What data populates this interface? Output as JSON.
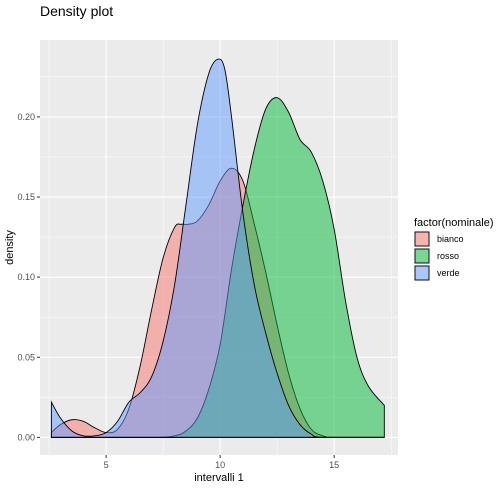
{
  "chart_data": {
    "type": "area",
    "title": "Density plot",
    "xlabel": "intervalli 1",
    "ylabel": "density",
    "xlim": [
      2.1,
      17.8
    ],
    "ylim": [
      -0.011,
      0.248
    ],
    "xticks": [
      5,
      10,
      15
    ],
    "yticks": [
      0.0,
      0.05,
      0.1,
      0.15,
      0.2
    ],
    "ytick_labels": [
      "0.00",
      "0.05",
      "0.10",
      "0.15",
      "0.20"
    ],
    "grid": true,
    "legend_title": "factor(nominale)",
    "legend_position": "right",
    "series": [
      {
        "name": "bianco",
        "color": "#F8766D",
        "points": [
          [
            2.6,
            0.003
          ],
          [
            3.0,
            0.008
          ],
          [
            3.5,
            0.011
          ],
          [
            4.0,
            0.01
          ],
          [
            4.5,
            0.006
          ],
          [
            5.0,
            0.003
          ],
          [
            5.5,
            0.005
          ],
          [
            6.0,
            0.018
          ],
          [
            6.5,
            0.045
          ],
          [
            7.0,
            0.08
          ],
          [
            7.5,
            0.112
          ],
          [
            8.0,
            0.131
          ],
          [
            8.3,
            0.133
          ],
          [
            8.6,
            0.133
          ],
          [
            9.0,
            0.135
          ],
          [
            9.5,
            0.145
          ],
          [
            10.0,
            0.16
          ],
          [
            10.5,
            0.168
          ],
          [
            11.0,
            0.16
          ],
          [
            11.5,
            0.133
          ],
          [
            12.0,
            0.103
          ],
          [
            12.5,
            0.07
          ],
          [
            13.0,
            0.04
          ],
          [
            13.5,
            0.018
          ],
          [
            14.0,
            0.005
          ],
          [
            14.5,
            0.001
          ],
          [
            15.0,
            0.0
          ],
          [
            17.2,
            0.0
          ]
        ]
      },
      {
        "name": "rosso",
        "color": "#00BA38",
        "points": [
          [
            2.6,
            0.0
          ],
          [
            7.0,
            0.0
          ],
          [
            8.0,
            0.001
          ],
          [
            8.5,
            0.004
          ],
          [
            9.0,
            0.012
          ],
          [
            9.5,
            0.03
          ],
          [
            10.0,
            0.058
          ],
          [
            10.5,
            0.105
          ],
          [
            11.0,
            0.145
          ],
          [
            11.5,
            0.18
          ],
          [
            12.0,
            0.205
          ],
          [
            12.5,
            0.212
          ],
          [
            13.0,
            0.203
          ],
          [
            13.5,
            0.186
          ],
          [
            14.0,
            0.178
          ],
          [
            14.5,
            0.16
          ],
          [
            15.0,
            0.13
          ],
          [
            15.5,
            0.085
          ],
          [
            16.0,
            0.05
          ],
          [
            16.5,
            0.032
          ],
          [
            17.2,
            0.02
          ]
        ]
      },
      {
        "name": "verde",
        "color": "#619CFF",
        "points": [
          [
            2.6,
            0.022
          ],
          [
            3.0,
            0.012
          ],
          [
            3.5,
            0.004
          ],
          [
            4.0,
            0.001
          ],
          [
            4.5,
            0.001
          ],
          [
            5.0,
            0.003
          ],
          [
            5.5,
            0.01
          ],
          [
            6.0,
            0.022
          ],
          [
            6.5,
            0.028
          ],
          [
            7.0,
            0.038
          ],
          [
            7.5,
            0.06
          ],
          [
            8.0,
            0.095
          ],
          [
            8.5,
            0.145
          ],
          [
            9.0,
            0.195
          ],
          [
            9.5,
            0.227
          ],
          [
            9.9,
            0.236
          ],
          [
            10.2,
            0.23
          ],
          [
            10.5,
            0.2
          ],
          [
            11.0,
            0.14
          ],
          [
            11.5,
            0.095
          ],
          [
            12.0,
            0.065
          ],
          [
            12.5,
            0.04
          ],
          [
            13.0,
            0.02
          ],
          [
            13.5,
            0.008
          ],
          [
            14.0,
            0.002
          ],
          [
            14.5,
            0.0
          ],
          [
            17.2,
            0.0
          ]
        ]
      }
    ]
  }
}
